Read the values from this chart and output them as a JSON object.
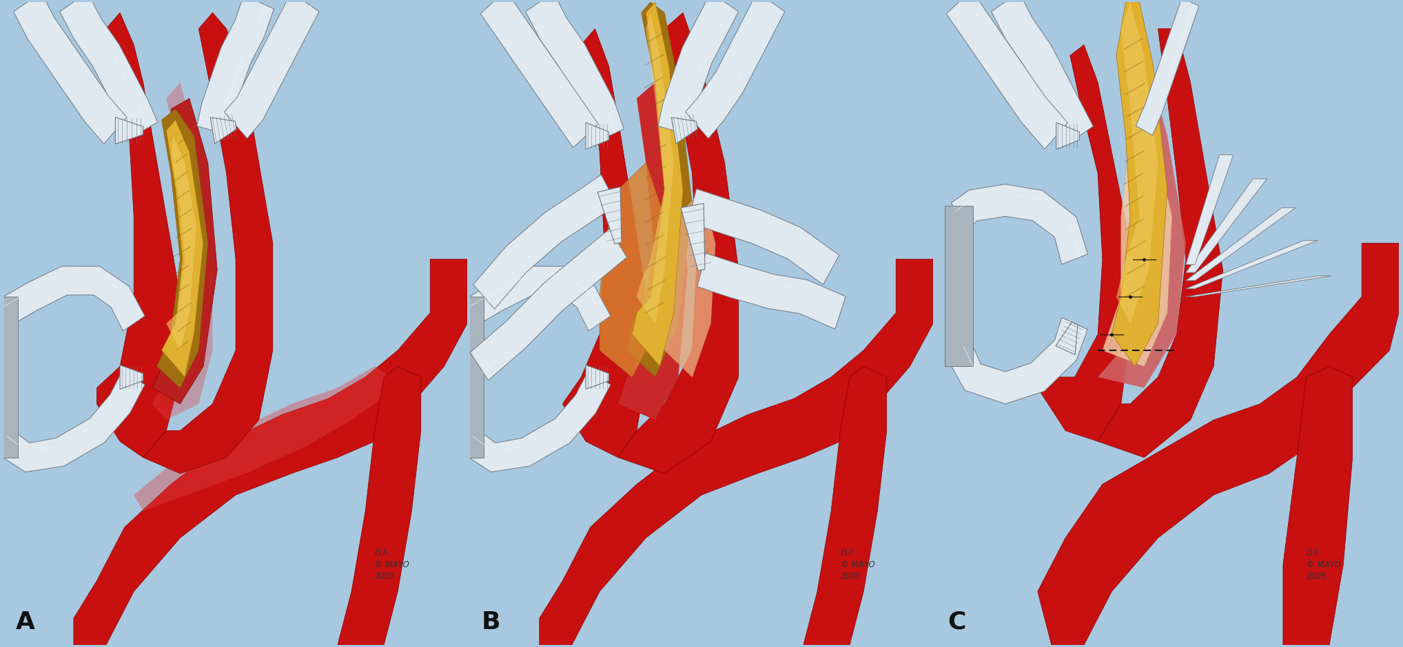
{
  "background_color": "#a8c8e0",
  "panel_labels": [
    "A",
    "B",
    "C"
  ],
  "panel_label_fontsize": 26,
  "panel_label_color": "#111111",
  "watermark_lines": [
    "D.F.",
    "© MAYO",
    "2005"
  ],
  "watermark_fontsize": 8.5,
  "watermark_color": "#333333",
  "border_color": "#ffffff",
  "artery_red": "#c81010",
  "artery_mid": "#a80808",
  "artery_dark": "#880000",
  "artery_light": "#e04040",
  "plaque_gold": "#c89010",
  "plaque_yellow": "#e0b030",
  "plaque_light": "#f0cc60",
  "plaque_dark": "#a07010",
  "tissue_orange": "#d88030",
  "tissue_pink": "#e8a878",
  "tissue_light": "#f0c8a0",
  "clamp_base": "#c8d0d8",
  "clamp_light": "#e0e8f0",
  "clamp_mid": "#a8b4be",
  "clamp_dark": "#707880",
  "clamp_shine": "#f0f4f8",
  "vessel_inner": "#c03030",
  "media_pink": "#e0907080",
  "fig_width": 20.36,
  "fig_height": 9.4,
  "dpi": 100
}
